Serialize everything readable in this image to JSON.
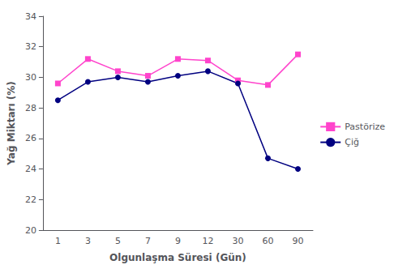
{
  "chart_data": {
    "type": "line",
    "xlabel": "Olgunlaşma Süresi (Gün)",
    "ylabel": "Yağ Miktarı (%)",
    "categories": [
      "1",
      "3",
      "5",
      "7",
      "9",
      "12",
      "30",
      "60",
      "90"
    ],
    "series": [
      {
        "name": "Pastörize",
        "color": "#FF44CC",
        "marker": "square",
        "values": [
          29.6,
          31.2,
          30.4,
          30.1,
          31.2,
          31.1,
          29.8,
          29.5,
          31.5
        ]
      },
      {
        "name": "Çiğ",
        "color": "#000080",
        "marker": "circle",
        "values": [
          28.5,
          29.7,
          30.0,
          29.7,
          30.1,
          30.4,
          29.6,
          24.7,
          24.0
        ]
      }
    ],
    "ylim": [
      20,
      34
    ],
    "yticks": [
      20,
      22,
      24,
      26,
      28,
      30,
      32,
      34
    ],
    "grid": false,
    "legend": "right"
  }
}
